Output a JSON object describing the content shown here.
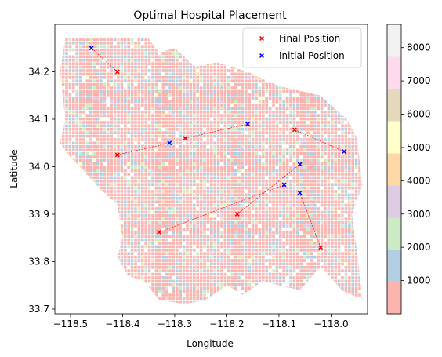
{
  "chart_data": {
    "type": "scatter",
    "title": "Optimal Hospital Placement",
    "xlabel": "Longitude",
    "ylabel": "Latitude",
    "xlim": [
      -118.53,
      -117.93
    ],
    "ylim": [
      33.69,
      34.3
    ],
    "xticks": [
      -118.5,
      -118.4,
      -118.3,
      -118.2,
      -118.1,
      -118.0
    ],
    "xtick_labels": [
      "−118.5",
      "−118.4",
      "−118.3",
      "−118.2",
      "−118.1",
      "−118.0"
    ],
    "yticks": [
      33.7,
      33.8,
      33.9,
      34.0,
      34.1,
      34.2
    ],
    "ytick_labels": [
      "33.7",
      "33.8",
      "33.9",
      "34.0",
      "34.1",
      "34.2"
    ],
    "legend_placement": "top-right",
    "series": [
      {
        "name": "Final Position",
        "marker": "x",
        "color": "#ff0000",
        "points": [
          [
            -118.41,
            34.2
          ],
          [
            -118.41,
            34.025
          ],
          [
            -118.28,
            34.06
          ],
          [
            -118.07,
            34.078
          ],
          [
            -118.18,
            33.9
          ],
          [
            -118.33,
            33.862
          ],
          [
            -118.02,
            33.83
          ]
        ]
      },
      {
        "name": "Initial Position",
        "marker": "x",
        "color": "#0000ff",
        "points": [
          [
            -118.46,
            34.25
          ],
          [
            -118.31,
            34.05
          ],
          [
            -118.16,
            34.09
          ],
          [
            -117.975,
            34.032
          ],
          [
            -118.06,
            34.005
          ],
          [
            -118.09,
            33.962
          ],
          [
            -118.06,
            33.945
          ]
        ]
      }
    ],
    "links": [
      [
        0,
        0
      ],
      [
        1,
        1
      ],
      [
        2,
        2
      ],
      [
        3,
        3
      ],
      [
        4,
        4
      ],
      [
        5,
        5
      ],
      [
        6,
        6
      ]
    ],
    "colorbar": {
      "range": [
        0,
        8700
      ],
      "ticks": [
        1000,
        2000,
        3000,
        4000,
        5000,
        6000,
        7000,
        8000
      ],
      "tick_labels": [
        "1000",
        "2000",
        "3000",
        "4000",
        "5000",
        "6000",
        "7000",
        "8000"
      ],
      "colors": [
        "#fbb4ae",
        "#b3cde3",
        "#ccebc5",
        "#decbe4",
        "#fed9a6",
        "#ffffcc",
        "#e5d8bd",
        "#fddaec",
        "#f2f2f2"
      ]
    },
    "density_colors": [
      "#fbb4ae",
      "#b3cde3",
      "#ccebc5",
      "#decbe4",
      "#fed9a6",
      "#ffffcc"
    ]
  }
}
